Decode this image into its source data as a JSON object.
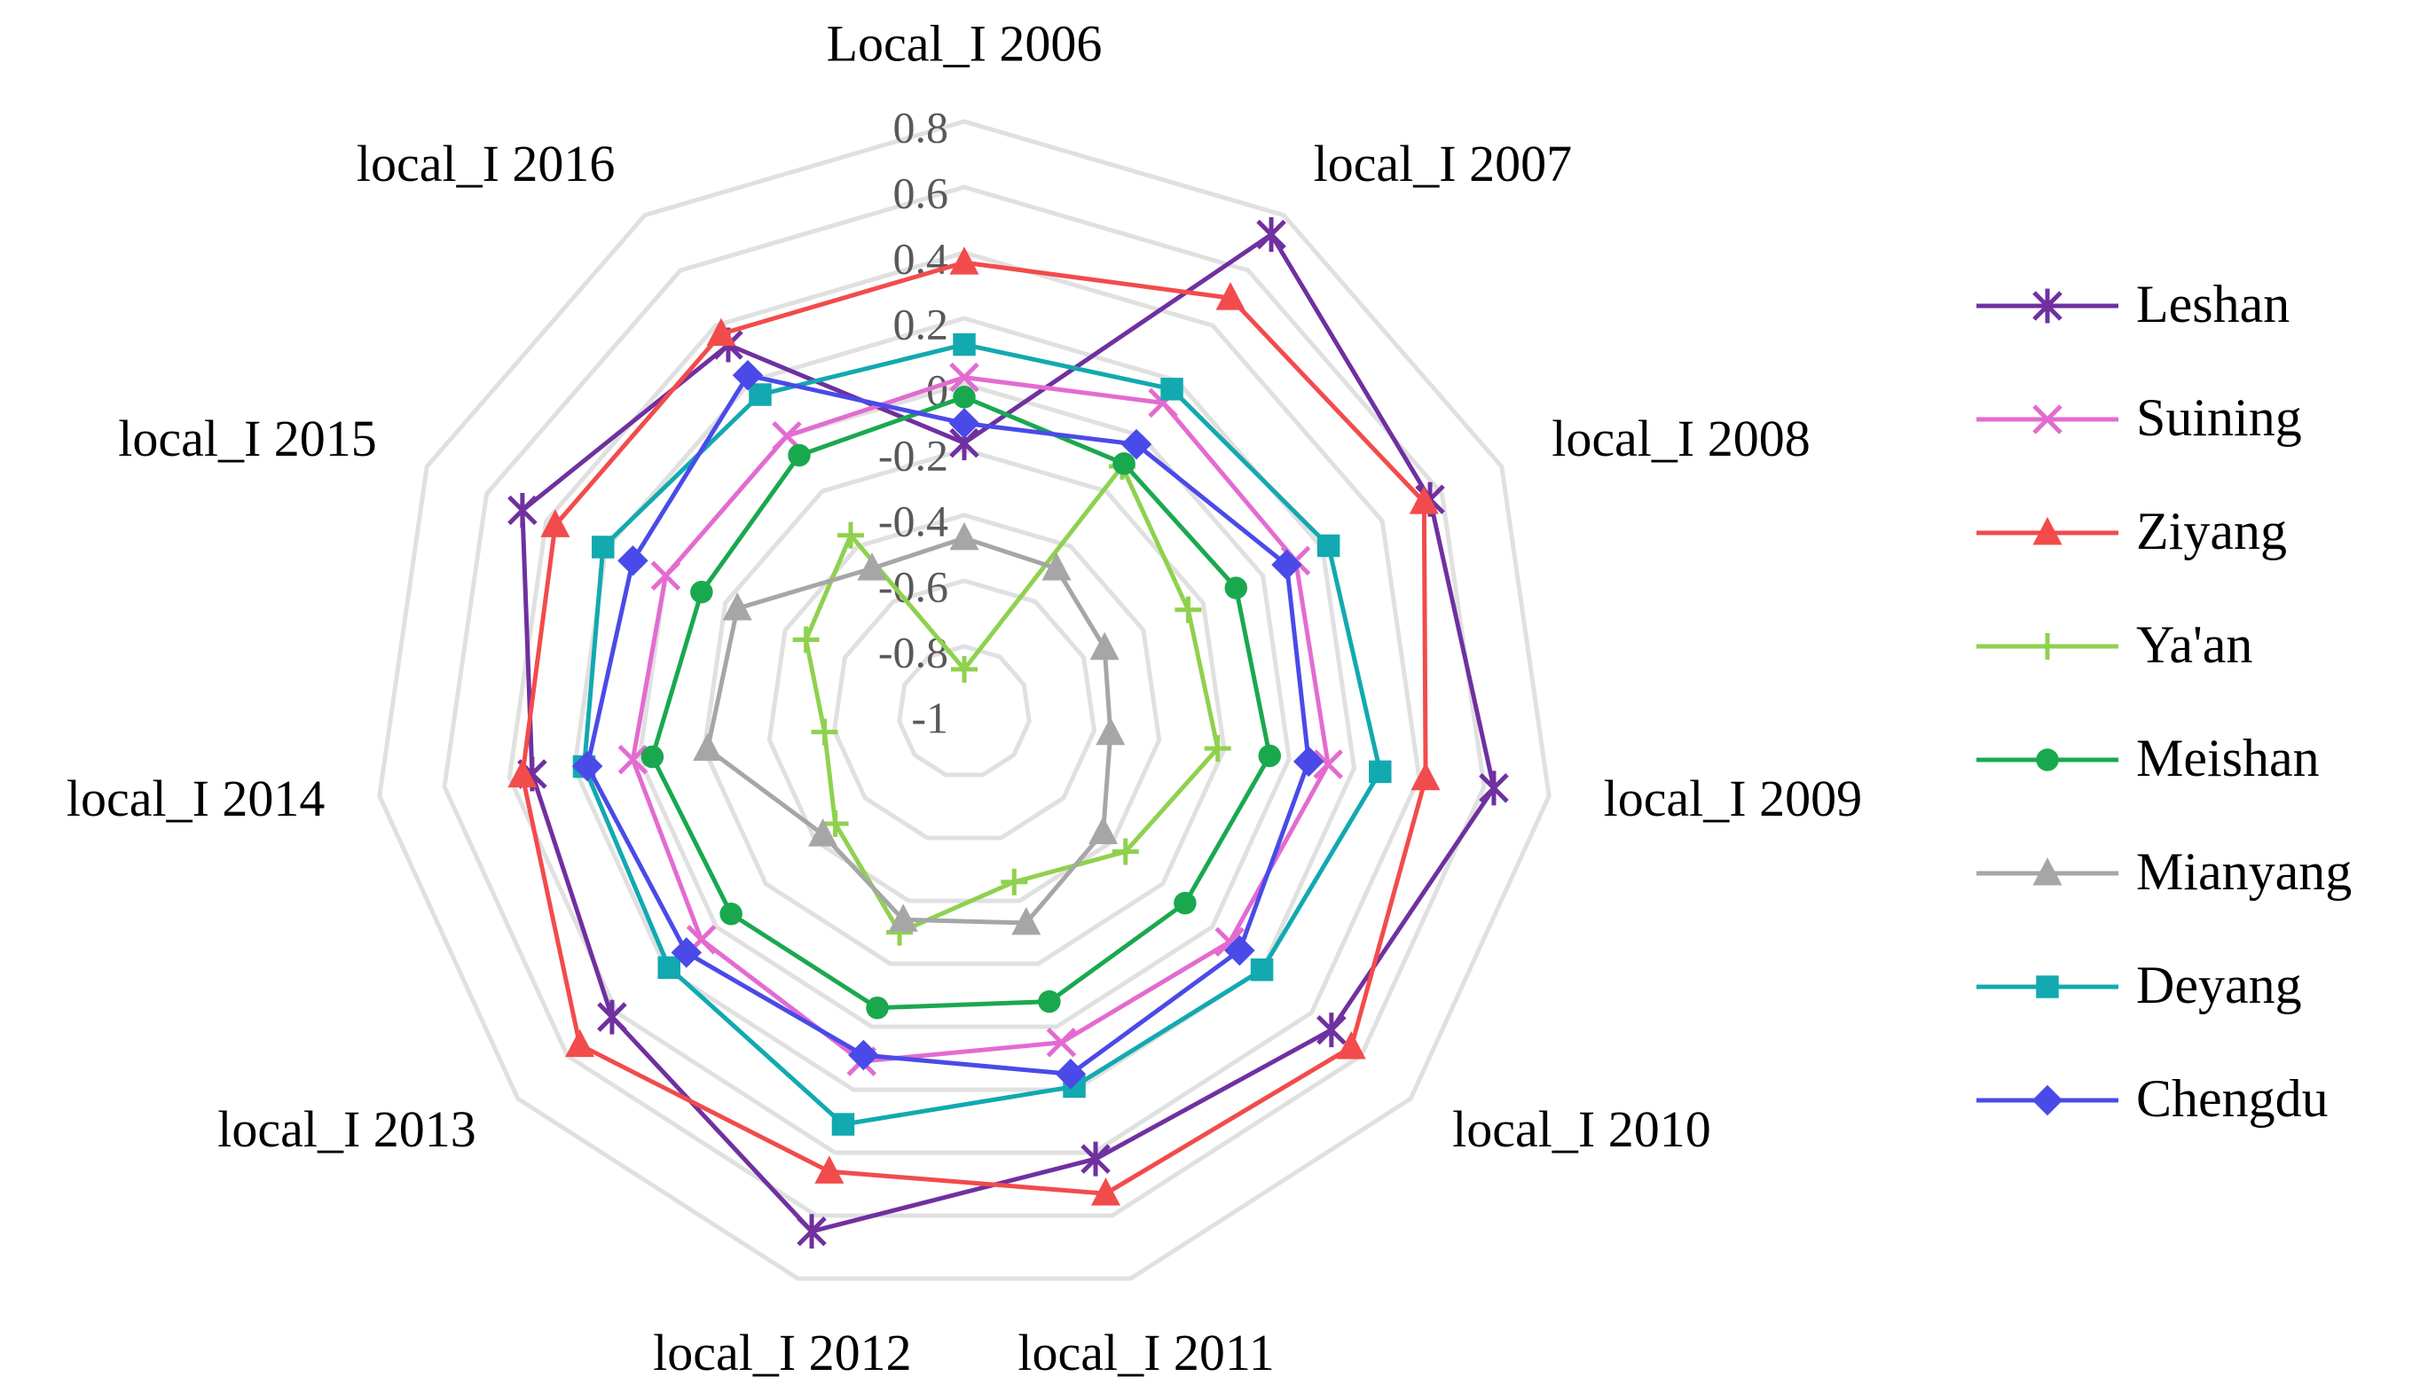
{
  "chart_data": {
    "type": "radar",
    "categories": [
      "Local_I 2006",
      "local_I 2007",
      "local_I 2008",
      "local_I 2009",
      "local_I 2010",
      "local_I 2011",
      "local_I 2012",
      "local_I 2013",
      "local_I 2014",
      "local_I 2015",
      "local_I 2016"
    ],
    "ylim": [
      -1,
      0.8
    ],
    "yticks": [
      -1,
      -0.8,
      -0.6,
      -0.4,
      -0.2,
      0,
      0.2,
      0.4,
      0.6,
      0.8
    ],
    "grid": true,
    "legend": "right",
    "series": [
      {
        "name": "Leshan",
        "color": "#7030a0",
        "marker": "star",
        "values": [
          -0.18,
          0.73,
          0.56,
          0.63,
          0.48,
          0.42,
          0.65,
          0.42,
          0.33,
          0.48,
          0.33
        ]
      },
      {
        "name": "Suining",
        "color": "#e36bd0",
        "marker": "x",
        "values": [
          0.02,
          0.12,
          0.11,
          0.12,
          0.07,
          0.05,
          0.11,
          0.06,
          0.02,
          0.0,
          0.0
        ]
      },
      {
        "name": "Ziyang",
        "color": "#f24b4b",
        "marker": "triangle",
        "values": [
          0.37,
          0.5,
          0.54,
          0.42,
          0.56,
          0.53,
          0.46,
          0.55,
          0.36,
          0.37,
          0.37
        ]
      },
      {
        "name": "Ya'an",
        "color": "#8fd14f",
        "marker": "plus",
        "values": [
          -0.87,
          -0.11,
          -0.25,
          -0.22,
          -0.35,
          -0.46,
          -0.3,
          -0.48,
          -0.57,
          -0.47,
          -0.36
        ]
      },
      {
        "name": "Meishan",
        "color": "#1aa84f",
        "marker": "circle",
        "values": [
          -0.04,
          -0.1,
          -0.09,
          -0.06,
          -0.11,
          -0.08,
          -0.06,
          -0.06,
          -0.04,
          -0.12,
          -0.07
        ]
      },
      {
        "name": "Mianyang",
        "color": "#a6a6a6",
        "marker": "triangle",
        "values": [
          -0.47,
          -0.48,
          -0.53,
          -0.55,
          -0.44,
          -0.33,
          -0.34,
          -0.43,
          -0.21,
          -0.24,
          -0.48
        ]
      },
      {
        "name": "Deyang",
        "color": "#12a9b0",
        "marker": "square",
        "values": [
          0.12,
          0.17,
          0.22,
          0.28,
          0.2,
          0.19,
          0.31,
          0.19,
          0.17,
          0.21,
          0.15
        ]
      },
      {
        "name": "Chengdu",
        "color": "#4a4ae8",
        "marker": "diamond",
        "values": [
          -0.12,
          -0.03,
          0.08,
          0.06,
          0.11,
          0.15,
          0.09,
          0.12,
          0.16,
          0.11,
          0.22
        ]
      }
    ]
  }
}
